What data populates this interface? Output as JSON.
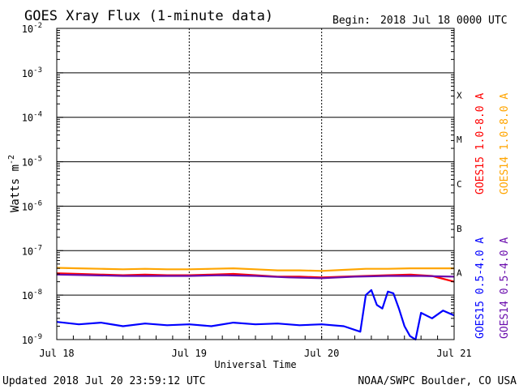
{
  "header": {
    "title": "GOES Xray Flux (1-minute data)",
    "begin_label": "Begin:",
    "begin_value": "2018 Jul 18 0000 UTC"
  },
  "footer": {
    "updated": "Updated 2018 Jul 20 23:59:12 UTC",
    "credit": "NOAA/SWPC Boulder, CO USA"
  },
  "chart_data": {
    "type": "line",
    "title": "GOES Xray Flux (1-minute data)",
    "xlabel": "Universal Time",
    "ylabel": "Watts m",
    "ylabel_exponent": "-2",
    "y_scale": "log",
    "ylim": [
      1e-09,
      0.01
    ],
    "x_range_hours": [
      0,
      72
    ],
    "x_ticks": [
      {
        "label": "Jul 18",
        "hour": 0
      },
      {
        "label": "Jul 19",
        "hour": 24
      },
      {
        "label": "Jul 20",
        "hour": 48
      },
      {
        "label": "Jul 21",
        "hour": 72
      }
    ],
    "y_ticks": [
      {
        "base": "10",
        "exp": "-2",
        "value": 0.01
      },
      {
        "base": "10",
        "exp": "-3",
        "value": 0.001
      },
      {
        "base": "10",
        "exp": "-4",
        "value": 0.0001
      },
      {
        "base": "10",
        "exp": "-5",
        "value": 1e-05
      },
      {
        "base": "10",
        "exp": "-6",
        "value": 1e-06
      },
      {
        "base": "10",
        "exp": "-7",
        "value": 1e-07
      },
      {
        "base": "10",
        "exp": "-8",
        "value": 1e-08
      },
      {
        "base": "10",
        "exp": "-9",
        "value": 1e-09
      }
    ],
    "flare_classes": [
      {
        "label": "X",
        "lower": 0.0001
      },
      {
        "label": "M",
        "lower": 1e-05
      },
      {
        "label": "C",
        "lower": 1e-06
      },
      {
        "label": "B",
        "lower": 1e-07
      },
      {
        "label": "A",
        "lower": 1e-08
      }
    ],
    "grid": true,
    "legend_right": [
      {
        "text": "GOES15 1.0-8.0 A",
        "color": "#ff0000"
      },
      {
        "text": "GOES14 1.0-8.0 A",
        "color": "#ffa500"
      },
      {
        "text": "GOES15 0.5-4.0 A",
        "color": "#0000ff"
      },
      {
        "text": "GOES14 0.5-4.0 A",
        "color": "#6a0dad"
      }
    ],
    "series": [
      {
        "name": "GOES14 1.0-8.0 A",
        "color": "#ffa500",
        "x": [
          0,
          4,
          8,
          12,
          16,
          20,
          24,
          28,
          32,
          36,
          40,
          44,
          48,
          52,
          56,
          60,
          64,
          68,
          72
        ],
        "y": [
          4.1e-08,
          4e-08,
          3.9e-08,
          3.8e-08,
          3.9e-08,
          3.8e-08,
          3.8e-08,
          3.9e-08,
          4e-08,
          3.8e-08,
          3.6e-08,
          3.6e-08,
          3.5e-08,
          3.7e-08,
          3.9e-08,
          3.9e-08,
          4e-08,
          4e-08,
          4e-08
        ]
      },
      {
        "name": "GOES15 1.0-8.0 A",
        "color": "#ff0000",
        "x": [
          0,
          4,
          8,
          12,
          16,
          20,
          24,
          28,
          32,
          36,
          40,
          44,
          48,
          52,
          56,
          60,
          64,
          68,
          72
        ],
        "y": [
          3.1e-08,
          3e-08,
          2.9e-08,
          2.8e-08,
          2.9e-08,
          2.8e-08,
          2.8e-08,
          2.9e-08,
          3e-08,
          2.8e-08,
          2.6e-08,
          2.6e-08,
          2.5e-08,
          2.6e-08,
          2.7e-08,
          2.8e-08,
          2.9e-08,
          2.7e-08,
          2e-08
        ]
      },
      {
        "name": "GOES14 0.5-4.0 A",
        "color": "#6a0dad",
        "x": [
          0,
          6,
          12,
          18,
          24,
          30,
          36,
          42,
          48,
          54,
          60,
          66,
          72
        ],
        "y": [
          2.9e-08,
          2.8e-08,
          2.7e-08,
          2.7e-08,
          2.7e-08,
          2.8e-08,
          2.7e-08,
          2.5e-08,
          2.4e-08,
          2.6e-08,
          2.7e-08,
          2.7e-08,
          2.6e-08
        ]
      },
      {
        "name": "GOES15 0.5-4.0 A",
        "color": "#0000ff",
        "x": [
          0,
          4,
          8,
          12,
          16,
          20,
          24,
          28,
          32,
          36,
          40,
          44,
          48,
          52,
          55,
          56,
          57,
          58,
          59,
          60,
          61,
          62,
          63,
          64,
          65,
          66,
          68,
          70,
          72
        ],
        "y": [
          2.5e-09,
          2.2e-09,
          2.4e-09,
          2e-09,
          2.3e-09,
          2.1e-09,
          2.2e-09,
          2e-09,
          2.4e-09,
          2.2e-09,
          2.3e-09,
          2.1e-09,
          2.2e-09,
          2e-09,
          1.5e-09,
          1e-08,
          1.3e-08,
          6e-09,
          5e-09,
          1.2e-08,
          1.1e-08,
          5e-09,
          2e-09,
          1.2e-09,
          1e-09,
          4e-09,
          3e-09,
          4.5e-09,
          3.5e-09
        ]
      }
    ]
  }
}
